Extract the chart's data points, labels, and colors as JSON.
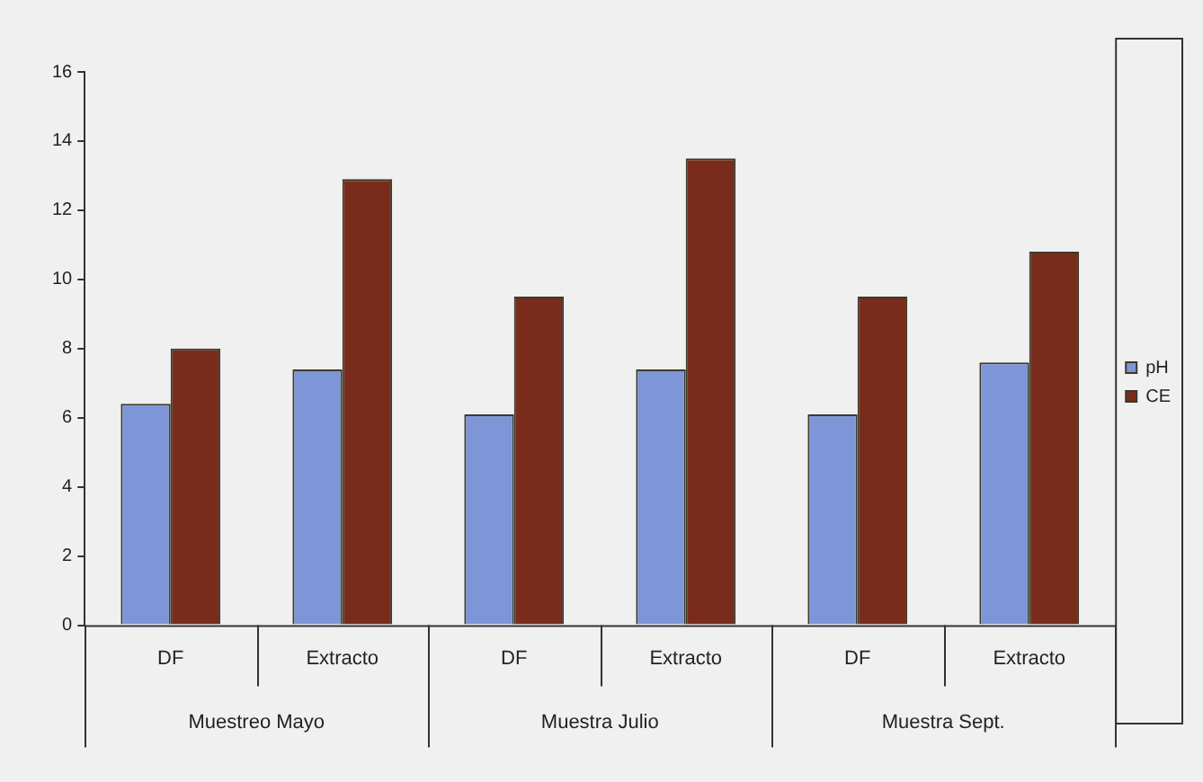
{
  "chart_data": {
    "type": "bar",
    "categories": [
      "DF",
      "Extracto",
      "DF",
      "Extracto",
      "DF",
      "Extracto"
    ],
    "annotations": [
      "Muestreo Mayo",
      "Muestra Julio",
      "Muestra Sept."
    ],
    "series": [
      {
        "name": "pH",
        "color": "#7e95d8",
        "values": [
          6.4,
          7.4,
          6.1,
          7.4,
          6.1,
          7.6
        ]
      },
      {
        "name": "CE",
        "color": "#7a2c1c",
        "values": [
          8.0,
          12.9,
          9.5,
          13.5,
          9.5,
          10.8
        ]
      }
    ],
    "ylim": [
      0,
      16
    ],
    "yticks": [
      0,
      2,
      4,
      6,
      8,
      10,
      12,
      14,
      16
    ],
    "grid": false,
    "legend": "right"
  }
}
